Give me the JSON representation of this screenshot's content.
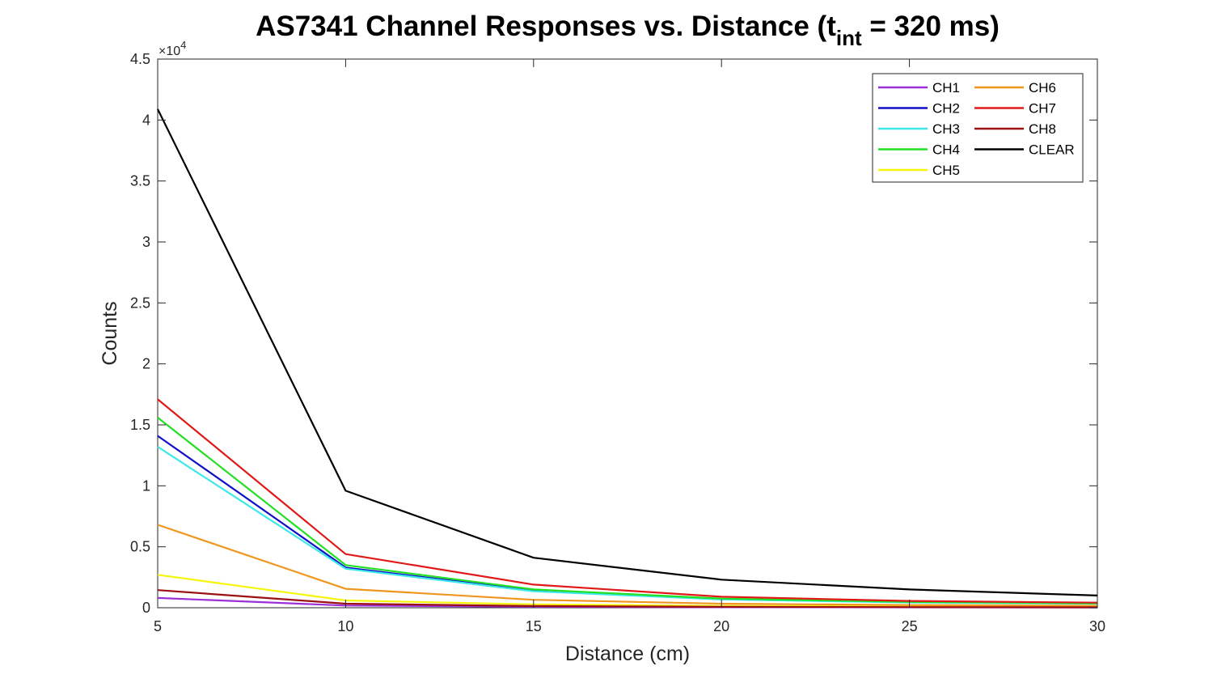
{
  "chart_data": {
    "type": "line",
    "title": {
      "main": "AS7341 Channel Responses vs. Distance (t",
      "subscript": "int",
      "tail": " = 320 ms)"
    },
    "xlabel": "Distance (cm)",
    "ylabel": "Counts",
    "xlim": [
      5,
      30
    ],
    "ylim": [
      0,
      45000
    ],
    "x": [
      5,
      10,
      15,
      20,
      25,
      30
    ],
    "xticks": [
      5,
      10,
      15,
      20,
      25,
      30
    ],
    "xtick_labels": [
      "5",
      "10",
      "15",
      "20",
      "25",
      "30"
    ],
    "yticks": [
      0,
      5000,
      10000,
      15000,
      20000,
      25000,
      30000,
      35000,
      40000,
      45000
    ],
    "ytick_labels": [
      "0",
      "0.5",
      "1",
      "1.5",
      "2",
      "2.5",
      "3",
      "3.5",
      "4",
      "4.5"
    ],
    "y_exponent": {
      "base": "×10",
      "power": "4"
    },
    "grid": false,
    "legend_position": "top-right",
    "legend_columns": 2,
    "series": [
      {
        "name": "CH1",
        "color": "#9b30d9",
        "values": [
          800,
          180,
          80,
          40,
          30,
          20
        ]
      },
      {
        "name": "CH2",
        "color": "#1010c8",
        "values": [
          14100,
          3300,
          1400,
          700,
          450,
          350
        ]
      },
      {
        "name": "CH3",
        "color": "#3ee8e8",
        "values": [
          13200,
          3200,
          1350,
          680,
          430,
          330
        ]
      },
      {
        "name": "CH4",
        "color": "#22e022",
        "values": [
          15600,
          3500,
          1500,
          750,
          480,
          360
        ]
      },
      {
        "name": "CH5",
        "color": "#f5f50a",
        "values": [
          2700,
          600,
          280,
          150,
          100,
          70
        ]
      },
      {
        "name": "CH6",
        "color": "#f0961e",
        "values": [
          6800,
          1550,
          650,
          330,
          220,
          160
        ]
      },
      {
        "name": "CH7",
        "color": "#e01818",
        "values": [
          17100,
          4400,
          1900,
          900,
          560,
          420
        ]
      },
      {
        "name": "CH8",
        "color": "#9b1010",
        "values": [
          1450,
          330,
          140,
          70,
          50,
          35
        ]
      },
      {
        "name": "CLEAR",
        "color": "#000000",
        "values": [
          40900,
          9600,
          4100,
          2300,
          1500,
          1000
        ]
      }
    ]
  }
}
